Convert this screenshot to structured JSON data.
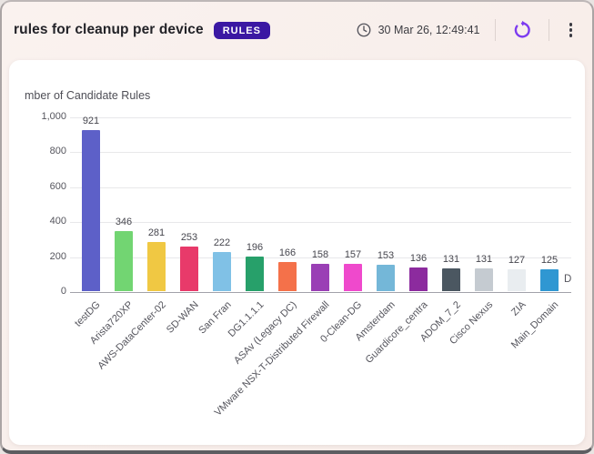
{
  "header": {
    "title": "rules for cleanup per device",
    "badge": "RULES",
    "timestamp": "30 Mar 26, 12:49:41",
    "icons": {
      "clock": "clock-icon",
      "refresh": "refresh-icon",
      "menu": "kebab-menu-icon"
    }
  },
  "colors": {
    "background": "#f7edea",
    "card": "#ffffff",
    "badge_bg": "#3b18a3",
    "badge_text": "#ffffff",
    "refresh_accent": "#7d3bf0",
    "text_primary": "#232328",
    "text_secondary": "#55555d",
    "gridline": "#e8e8ea",
    "axis": "#a2a2aa"
  },
  "chart_data": {
    "type": "bar",
    "title": "mber of Candidate Rules",
    "xlabel": "D",
    "ylabel": "",
    "ylim": [
      0,
      1000
    ],
    "grid": true,
    "legend": false,
    "yticks": [
      {
        "value": 0,
        "label": "0"
      },
      {
        "value": 200,
        "label": "200"
      },
      {
        "value": 400,
        "label": "400"
      },
      {
        "value": 600,
        "label": "600"
      },
      {
        "value": 800,
        "label": "800"
      },
      {
        "value": 1000,
        "label": "1,000"
      }
    ],
    "categories": [
      "testDG",
      "Arista720XP",
      "AWS-DataCenter-02",
      "SD-WAN",
      "San Fran",
      "DG1.1.1.1",
      "ASAv (Legacy DC)",
      "VMware NSX-T-Distributed Firewall",
      "0-Clean-DG",
      "Amsterdam",
      "Guardicore_centra",
      "ADOM_7_2",
      "Cisco Nexus",
      "ZIA",
      "Main_Domain"
    ],
    "values": [
      921,
      346,
      281,
      253,
      222,
      196,
      166,
      158,
      157,
      153,
      136,
      131,
      131,
      127,
      125
    ],
    "bar_colors": [
      "#5d60c8",
      "#72d572",
      "#f0c843",
      "#e83a6a",
      "#80c1e6",
      "#27a06a",
      "#f4714a",
      "#9a3fb5",
      "#ef49cc",
      "#74b7d8",
      "#8c2b9e",
      "#4b5761",
      "#c5cbd1",
      "#e9edf0",
      "#2f97d2"
    ]
  }
}
